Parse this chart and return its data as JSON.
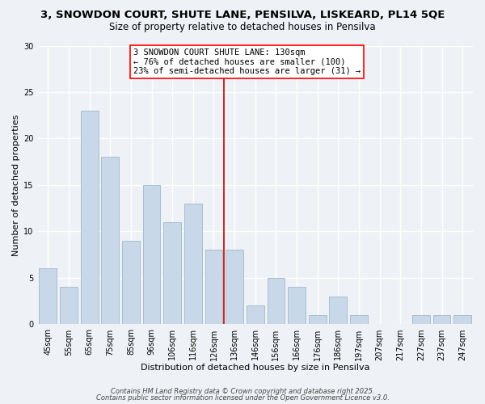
{
  "title_line1": "3, SNOWDON COURT, SHUTE LANE, PENSILVA, LISKEARD, PL14 5QE",
  "title_line2": "Size of property relative to detached houses in Pensilva",
  "xlabel": "Distribution of detached houses by size in Pensilva",
  "ylabel": "Number of detached properties",
  "bar_labels": [
    "45sqm",
    "55sqm",
    "65sqm",
    "75sqm",
    "85sqm",
    "96sqm",
    "106sqm",
    "116sqm",
    "126sqm",
    "136sqm",
    "146sqm",
    "156sqm",
    "166sqm",
    "176sqm",
    "186sqm",
    "197sqm",
    "207sqm",
    "217sqm",
    "227sqm",
    "237sqm",
    "247sqm"
  ],
  "bar_values": [
    6,
    4,
    23,
    18,
    9,
    15,
    11,
    13,
    8,
    8,
    2,
    5,
    4,
    1,
    3,
    1,
    0,
    0,
    1,
    1,
    1
  ],
  "bar_color": "#c8d8e8",
  "bar_edge_color": "#a0b8cc",
  "vline_x": 8.5,
  "vline_color": "#cc0000",
  "annotation_box_text": "3 SNOWDON COURT SHUTE LANE: 130sqm\n← 76% of detached houses are smaller (100)\n23% of semi-detached houses are larger (31) →",
  "ylim": [
    0,
    30
  ],
  "yticks": [
    0,
    5,
    10,
    15,
    20,
    25,
    30
  ],
  "background_color": "#eef2f6",
  "plot_bg_color": "#eef2f6",
  "grid_color": "#ffffff",
  "footer_line1": "Contains HM Land Registry data © Crown copyright and database right 2025.",
  "footer_line2": "Contains public sector information licensed under the Open Government Licence v3.0.",
  "title_fontsize": 9.5,
  "subtitle_fontsize": 8.5,
  "axis_label_fontsize": 8,
  "tick_fontsize": 7,
  "annotation_fontsize": 7.5,
  "footer_fontsize": 6
}
